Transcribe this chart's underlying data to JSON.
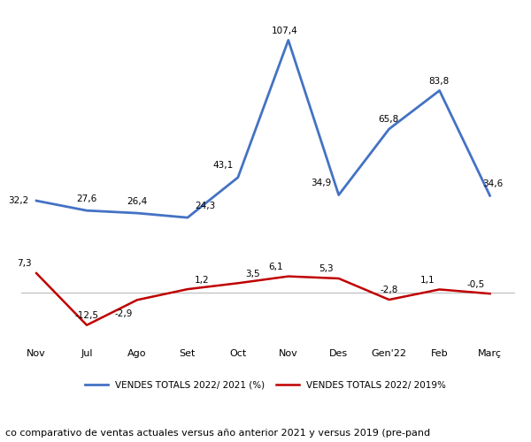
{
  "x_labels": [
    "Nov",
    "Jul",
    "Ago",
    "Set",
    "Oct",
    "Nov",
    "Des",
    "Gen'22",
    "Feb",
    "Març"
  ],
  "blue_values": [
    32.2,
    27.6,
    26.4,
    24.3,
    43.1,
    107.4,
    34.9,
    65.8,
    83.8,
    34.6
  ],
  "red_values": [
    7.3,
    -12.5,
    -2.9,
    1.2,
    3.5,
    6.1,
    5.3,
    -2.8,
    1.1,
    -0.5
  ],
  "blue_label_ha": [
    "right",
    "center",
    "center",
    "left",
    "right",
    "right",
    "right",
    "right",
    "right",
    "left"
  ],
  "blue_label_va": [
    "center",
    "bottom",
    "bottom",
    "bottom",
    "bottom",
    "bottom",
    "bottom",
    "bottom",
    "bottom",
    "bottom"
  ],
  "blue_label_dx": [
    -6,
    0,
    0,
    6,
    -4,
    8,
    -6,
    8,
    8,
    -6
  ],
  "blue_label_dy": [
    0,
    6,
    6,
    6,
    6,
    4,
    6,
    4,
    4,
    6
  ],
  "red_label_ha": [
    "right",
    "center",
    "right",
    "left",
    "left",
    "right",
    "right",
    "center",
    "right",
    "right"
  ],
  "red_label_va": [
    "bottom",
    "bottom",
    "top",
    "bottom",
    "bottom",
    "bottom",
    "bottom",
    "bottom",
    "bottom",
    "bottom"
  ],
  "red_label_dx": [
    -4,
    0,
    -4,
    6,
    6,
    -4,
    -4,
    0,
    -4,
    -4
  ],
  "red_label_dy": [
    4,
    4,
    -8,
    4,
    4,
    4,
    4,
    4,
    4,
    4
  ],
  "blue_color": "#4472C4",
  "red_color": "#C00000",
  "legend_blue": "VENDES TOTALS 2022/ 2021 (%)",
  "legend_red": "VENDES TOTALS 2022/ 2019%",
  "caption": "co comparativo de ventas actuales versus año anterior 2021 y versus 2019 (pre-pand",
  "grid_color": "#D9D9D9",
  "background_color": "#FFFFFF",
  "blue_ylim": [
    10,
    120
  ],
  "red_ylim": [
    -20,
    12
  ],
  "figsize": [
    6.0,
    5.0
  ],
  "dpi": 100
}
